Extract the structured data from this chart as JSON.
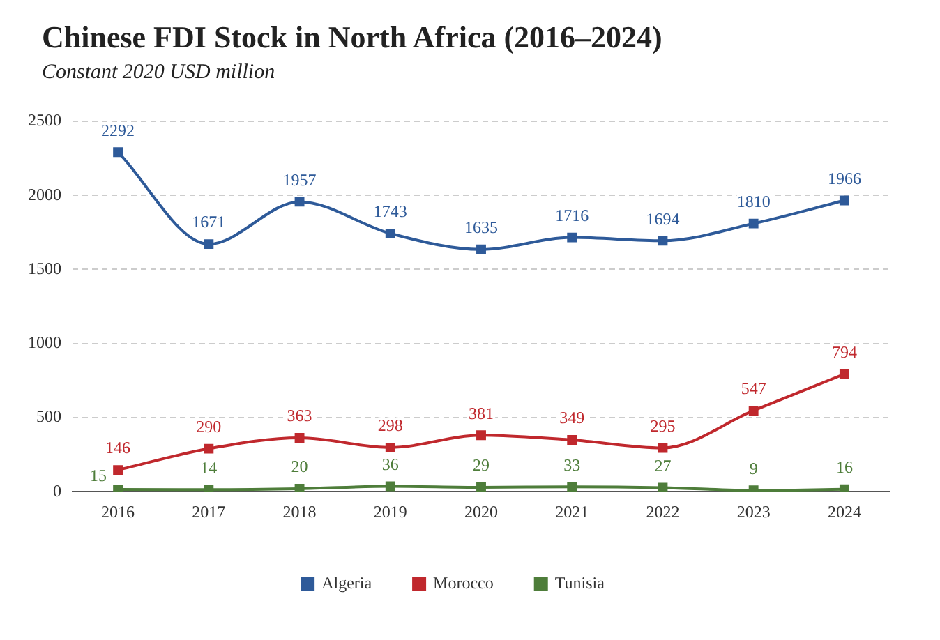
{
  "chart_data": {
    "type": "line",
    "title": "Chinese FDI Stock in North Africa (2016–2024)",
    "subtitle": "Constant 2020 USD million",
    "categories": [
      "2016",
      "2017",
      "2018",
      "2019",
      "2020",
      "2021",
      "2022",
      "2023",
      "2024"
    ],
    "series": [
      {
        "name": "Algeria",
        "color": "#2e5a99",
        "values": [
          2292,
          1671,
          1957,
          1743,
          1635,
          1716,
          1694,
          1810,
          1966
        ]
      },
      {
        "name": "Morocco",
        "color": "#c0282d",
        "values": [
          146,
          290,
          363,
          298,
          381,
          349,
          295,
          547,
          794
        ]
      },
      {
        "name": "Tunisia",
        "color": "#4e7d3a",
        "values": [
          15,
          14,
          20,
          36,
          29,
          33,
          27,
          9,
          16
        ]
      }
    ],
    "ylim": [
      0,
      2500
    ],
    "yticks": [
      0,
      500,
      1000,
      1500,
      2000,
      2500
    ],
    "grid": "y",
    "legend": "bottom",
    "marker": "square",
    "line_style": "solid",
    "data_labels": true
  }
}
